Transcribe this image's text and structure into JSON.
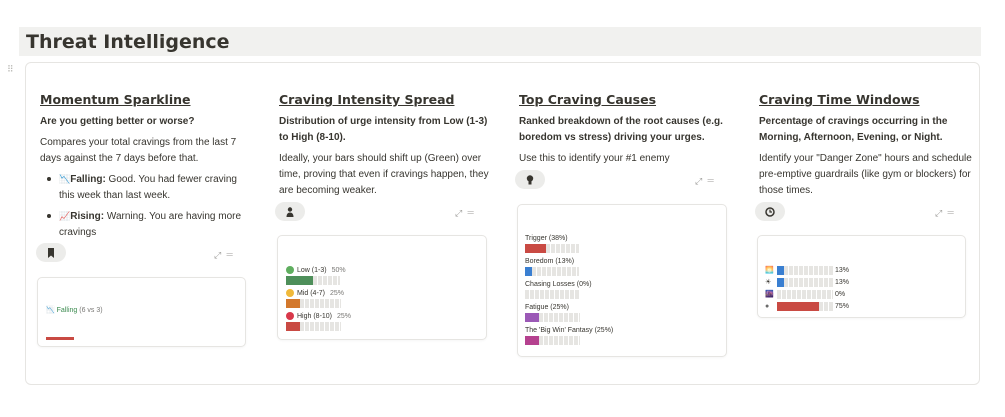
{
  "header": {
    "title": "Threat Intelligence"
  },
  "columns": [
    {
      "title": "Momentum Sparkline",
      "subtitle": "Are you getting better or worse?",
      "description": "Compares your total cravings from the last 7 days against the 7 days before that.",
      "bullets": [
        {
          "icon": "📉",
          "bold": "Falling:",
          "text": " Good. You had fewer craving this week than last week."
        },
        {
          "icon": "📈",
          "bold": "Rising:",
          "text": " Warning. You are having more cravings"
        }
      ],
      "icon": "bookmark-icon",
      "card": {
        "status": "📉 Falling",
        "detail": "(6 vs 3)"
      }
    },
    {
      "title": "Craving Intensity Spread",
      "subtitle": "Distribution of urge intensity from Low (1-3) to High (8-10).",
      "description": "Ideally, your bars should shift up (Green) over time, proving that even if cravings happen, they are becoming weaker.",
      "icon": "person-icon",
      "card": {
        "rows": [
          {
            "label": "Low (1-3)",
            "pct": "50%",
            "value": 0.5,
            "color": "#4e8f5a",
            "dot": "#5fae5f"
          },
          {
            "label": "Mid (4-7)",
            "pct": "25%",
            "value": 0.25,
            "color": "#d3782c",
            "dot": "#f0b93a"
          },
          {
            "label": "High (8-10)",
            "pct": "25%",
            "value": 0.25,
            "color": "#c94a43",
            "dot": "#d8384a"
          }
        ]
      }
    },
    {
      "title": "Top Craving Causes",
      "subtitle": "Ranked breakdown of the root causes (e.g. boredom vs stress) driving your urges.",
      "description": "Use this to identify your #1 enemy",
      "icon": "lightbulb-icon",
      "card": {
        "rows": [
          {
            "label": "Trigger (38%)",
            "value": 0.38,
            "color": "#c94a43"
          },
          {
            "label": "Boredom (13%)",
            "value": 0.13,
            "color": "#3a7fd1"
          },
          {
            "label": "Chasing Losses (0%)",
            "value": 0,
            "color": "#9b9a97"
          },
          {
            "label": "Fatigue (25%)",
            "value": 0.25,
            "color": "#9b59b6"
          },
          {
            "label": "The 'Big Win' Fantasy (25%)",
            "value": 0.25,
            "color": "#b5418f"
          }
        ]
      }
    },
    {
      "title": "Craving Time Windows",
      "subtitle": "Percentage of cravings occurring in the Morning, Afternoon, Evening, or Night.",
      "description": "Identify your \"Danger Zone\" hours and schedule pre-emptive guardrails (like gym or blockers) for those times.",
      "icon": "clock-icon",
      "card": {
        "rows": [
          {
            "icon": "🌅",
            "pct": "13%",
            "value": 0.13,
            "color": "#3a7fd1"
          },
          {
            "icon": "☀",
            "pct": "13%",
            "value": 0.13,
            "color": "#3a7fd1"
          },
          {
            "icon": "🌆",
            "pct": "0%",
            "value": 0,
            "color": "#9b9a97"
          },
          {
            "icon": "●",
            "pct": "75%",
            "value": 0.75,
            "color": "#c94a43"
          }
        ]
      }
    }
  ]
}
